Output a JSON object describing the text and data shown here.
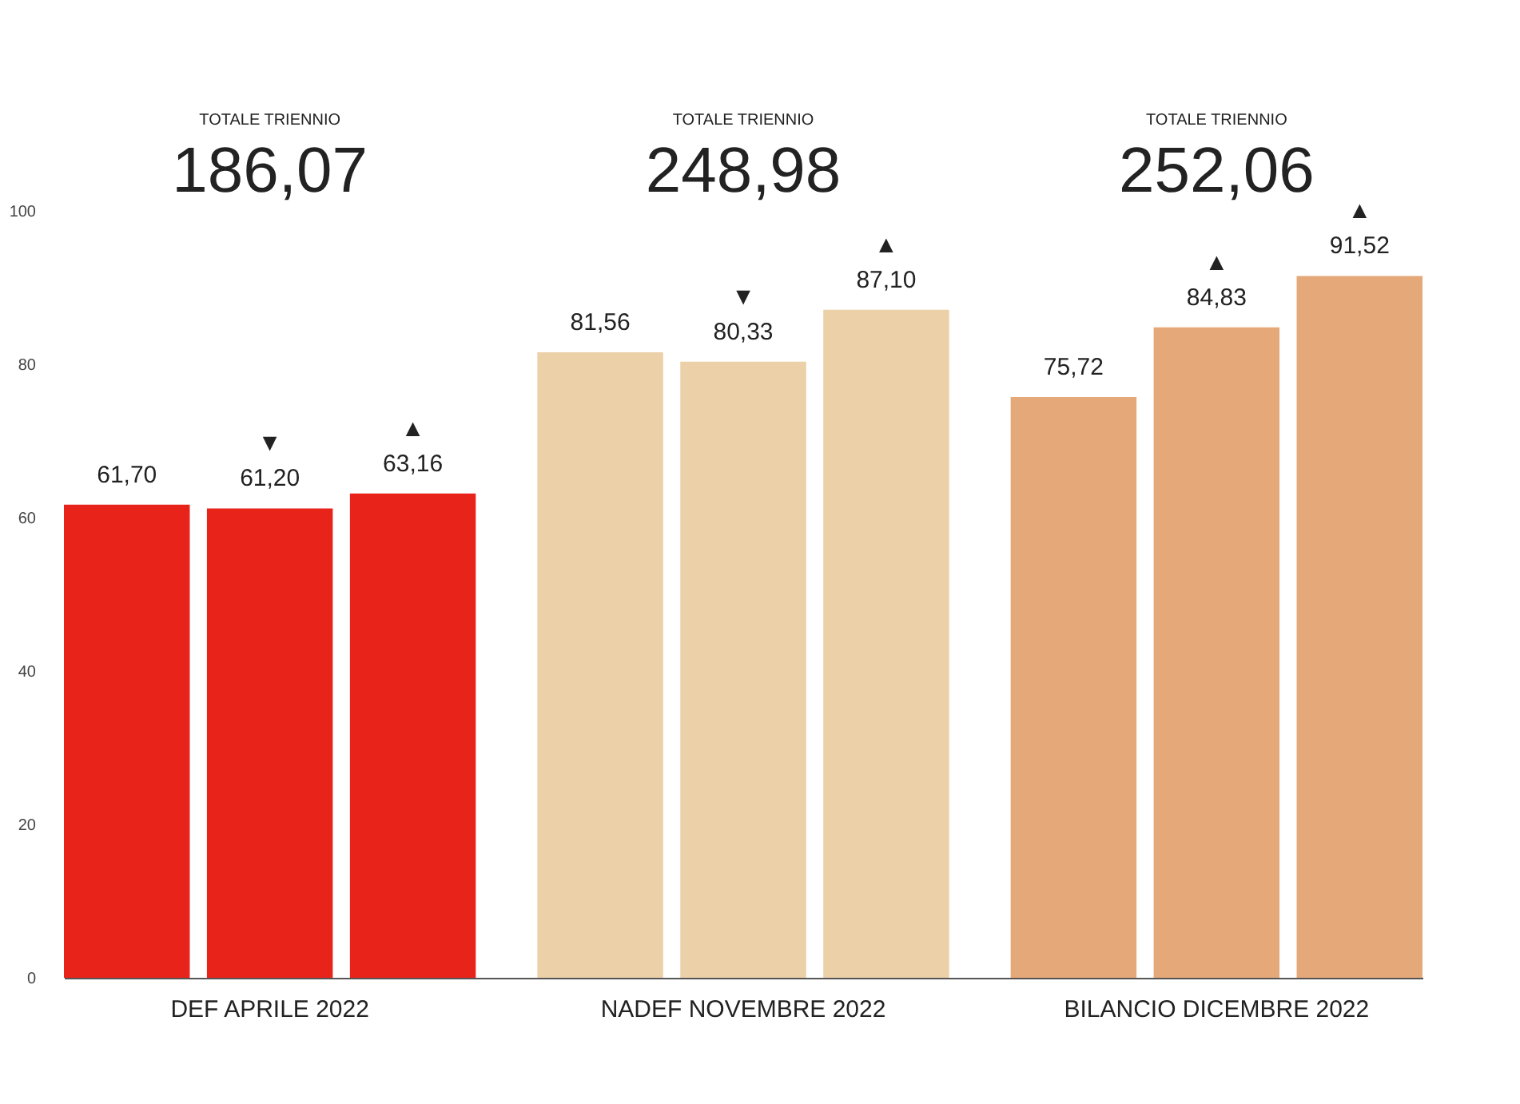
{
  "chart_data": {
    "type": "bar",
    "categories": [
      "DEF APRILE 2022",
      "NADEF NOVEMBRE 2022",
      "BILANCIO DICEMBRE 2022"
    ],
    "series": [
      {
        "colors": [
          "#e8231a",
          "#ecd0a8",
          "#e5a878"
        ],
        "values": [
          61.7,
          81.56,
          75.72
        ],
        "value_labels": [
          "61,70",
          "81,56",
          "75,72"
        ]
      },
      {
        "colors": [
          "#e8231a",
          "#ecd0a8",
          "#e5a878"
        ],
        "values": [
          61.2,
          80.33,
          84.83
        ],
        "value_labels": [
          "▼\n61,20",
          "▼\n80,33",
          "▲\n84,83"
        ]
      },
      {
        "colors": [
          "#e8231a",
          "#ecd0a8",
          "#e5a878"
        ],
        "values": [
          63.16,
          87.1,
          91.52
        ],
        "value_labels": [
          "▲\n63,16",
          "▲\n87,10",
          "▲\n91,52"
        ]
      }
    ],
    "annotations": [
      "TOTALE TRIENNIO",
      "186,07",
      "TOTALE TRIENNIO",
      "248,98",
      "TOTALE TRIENNIO",
      "252,06"
    ],
    "ylim": [
      0,
      100
    ],
    "yticks": [
      0,
      20,
      40,
      60,
      80,
      100
    ],
    "grid": false
  }
}
